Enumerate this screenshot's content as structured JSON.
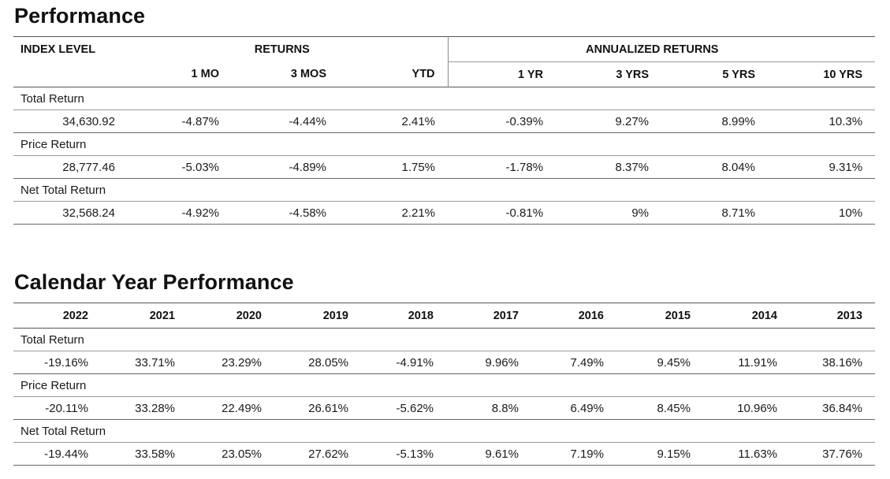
{
  "performance": {
    "title": "Performance",
    "headers": {
      "index_level": "INDEX LEVEL",
      "returns": "RETURNS",
      "annualized_returns": "ANNUALIZED RETURNS",
      "cols": [
        "1 MO",
        "3 MOS",
        "YTD",
        "1 YR",
        "3 YRS",
        "5 YRS",
        "10 YRS"
      ]
    },
    "rows": [
      {
        "label": "Total Return",
        "values": [
          "34,630.92",
          "-4.87%",
          "-4.44%",
          "2.41%",
          "-0.39%",
          "9.27%",
          "8.99%",
          "10.3%"
        ]
      },
      {
        "label": "Price Return",
        "values": [
          "28,777.46",
          "-5.03%",
          "-4.89%",
          "1.75%",
          "-1.78%",
          "8.37%",
          "8.04%",
          "9.31%"
        ]
      },
      {
        "label": "Net Total Return",
        "values": [
          "32,568.24",
          "-4.92%",
          "-4.58%",
          "2.21%",
          "-0.81%",
          "9%",
          "8.71%",
          "10%"
        ]
      }
    ]
  },
  "calendar": {
    "title": "Calendar Year Performance",
    "years": [
      "2022",
      "2021",
      "2020",
      "2019",
      "2018",
      "2017",
      "2016",
      "2015",
      "2014",
      "2013"
    ],
    "rows": [
      {
        "label": "Total Return",
        "values": [
          "-19.16%",
          "33.71%",
          "23.29%",
          "28.05%",
          "-4.91%",
          "9.96%",
          "7.49%",
          "9.45%",
          "11.91%",
          "38.16%"
        ]
      },
      {
        "label": "Price Return",
        "values": [
          "-20.11%",
          "33.28%",
          "22.49%",
          "26.61%",
          "-5.62%",
          "8.8%",
          "6.49%",
          "8.45%",
          "10.96%",
          "36.84%"
        ]
      },
      {
        "label": "Net Total Return",
        "values": [
          "-19.44%",
          "33.58%",
          "23.05%",
          "27.62%",
          "-5.13%",
          "9.61%",
          "7.19%",
          "9.15%",
          "11.63%",
          "37.76%"
        ]
      }
    ]
  }
}
